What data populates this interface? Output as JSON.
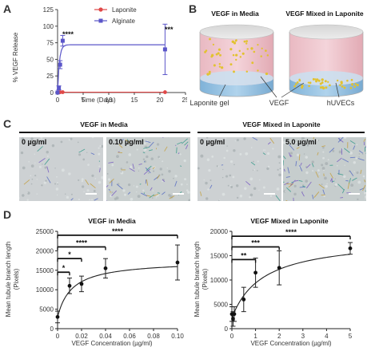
{
  "panel_A": {
    "letter": "A",
    "ylabel": "% VEGF Release",
    "xlabel": "Time (Days)",
    "legend": [
      {
        "name": "Laponite",
        "color": "#e04848",
        "marker": "circle"
      },
      {
        "name": "Alginate",
        "color": "#5b56c9",
        "marker": "square"
      }
    ],
    "sig_day1": "****",
    "sig_day21": "***",
    "yticks": [
      "0",
      "25",
      "50",
      "75",
      "100",
      "125"
    ],
    "xticks": [
      "0",
      "5",
      "10",
      "15",
      "20",
      "25"
    ]
  },
  "panel_B": {
    "letter": "B",
    "title_left": "VEGF in Media",
    "title_right": "VEGF Mixed in Laponite",
    "label_gel": "Laponite gel",
    "label_vegf": "VEGF",
    "label_cells": "hUVECs"
  },
  "panel_C": {
    "letter": "C",
    "title_left": "VEGF in Media",
    "title_right": "VEGF Mixed in Laponite",
    "images": [
      {
        "label": "0 µg/ml"
      },
      {
        "label": "0.10 µg/ml"
      },
      {
        "label": "0 µg/ml"
      },
      {
        "label": "5.0 µg/ml"
      }
    ]
  },
  "panel_D": {
    "letter": "D",
    "ylabel_line1": "Mean tubule branch length",
    "ylabel_line2": "(Pixels)",
    "xlabel": "VEGF Concentration (µg/ml)",
    "left_title": "VEGF in Media",
    "right_title": "VEGF Mixed in Laponite",
    "left_yticks": [
      "0",
      "5000",
      "10000",
      "15000",
      "20000",
      "25000"
    ],
    "left_xticks": [
      "0",
      "0.02",
      "0.04",
      "0.06",
      "0.08",
      "0.10"
    ],
    "right_yticks": [
      "0",
      "5000",
      "10000",
      "15000",
      "20000"
    ],
    "right_xticks": [
      "0",
      "1",
      "2",
      "3",
      "4",
      "5"
    ],
    "left_sigs": [
      "****",
      "****",
      "*",
      "*"
    ],
    "right_sigs": [
      "****",
      "***",
      "**"
    ]
  },
  "chart_data": [
    {
      "type": "line",
      "title": "",
      "xlabel": "Time (Days)",
      "ylabel": "% VEGF Release",
      "xlim": [
        0,
        25
      ],
      "ylim": [
        0,
        125
      ],
      "series": [
        {
          "name": "Laponite",
          "x": [
            0,
            0.25,
            0.5,
            1,
            21
          ],
          "y": [
            0,
            0.5,
            0.5,
            0.5,
            0.5
          ],
          "err": [
            0,
            0,
            0,
            0,
            0
          ]
        },
        {
          "name": "Alginate",
          "x": [
            0,
            0.25,
            0.5,
            1,
            21
          ],
          "y": [
            0,
            7,
            42,
            78,
            65
          ],
          "err": [
            0,
            3,
            6,
            8,
            38
          ]
        }
      ],
      "annotations": [
        "****",
        "***"
      ]
    },
    {
      "type": "scatter",
      "title": "VEGF in Media",
      "xlabel": "VEGF Concentration (µg/ml)",
      "ylabel": "Mean tubule branch length (Pixels)",
      "xlim": [
        0,
        0.1
      ],
      "ylim": [
        0,
        25000
      ],
      "series": [
        {
          "x": [
            0,
            0.01,
            0.02,
            0.04,
            0.1
          ],
          "y": [
            3000,
            11000,
            11500,
            15500,
            17000
          ],
          "err": [
            1500,
            2000,
            2000,
            2500,
            4500
          ]
        }
      ],
      "annotations": [
        "****",
        "****",
        "*",
        "*"
      ]
    },
    {
      "type": "scatter",
      "title": "VEGF Mixed in Laponite",
      "xlabel": "VEGF Concentration (µg/ml)",
      "ylabel": "Mean tubule branch length (Pixels)",
      "xlim": [
        0,
        5
      ],
      "ylim": [
        0,
        20000
      ],
      "series": [
        {
          "x": [
            0,
            0.05,
            0.1,
            0.5,
            1,
            2,
            5
          ],
          "y": [
            3000,
            2000,
            3000,
            6000,
            11500,
            12500,
            16500
          ],
          "err": [
            1500,
            1500,
            1500,
            2500,
            3000,
            3500,
            1200
          ]
        }
      ],
      "annotations": [
        "****",
        "***",
        "**"
      ]
    }
  ]
}
